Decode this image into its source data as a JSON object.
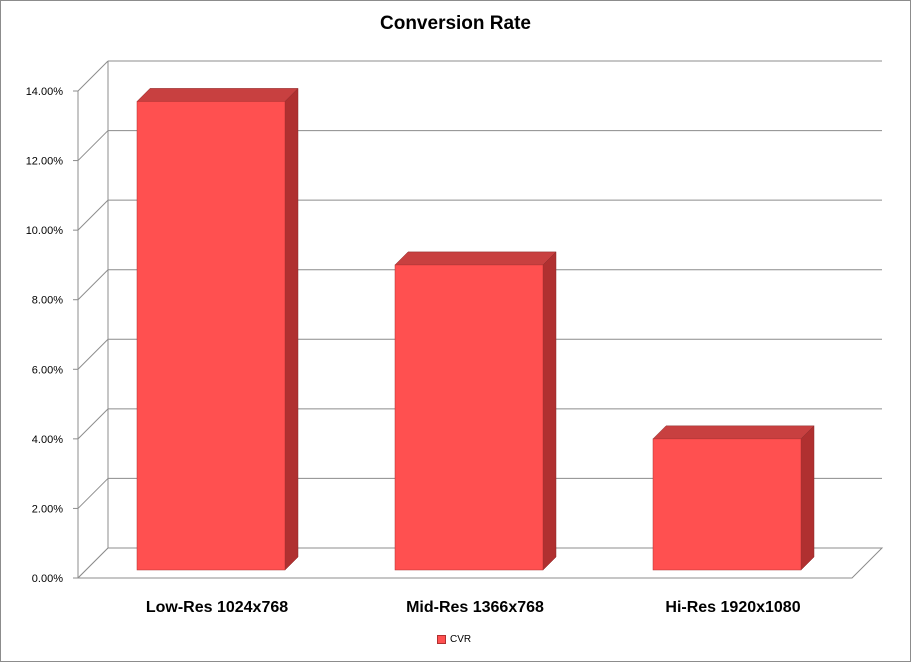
{
  "chart_data": {
    "type": "bar",
    "title": "Conversion Rate",
    "categories": [
      "Low-Res 1024x768",
      "Mid-Res 1366x768",
      "Hi-Res 1920x1080"
    ],
    "series": [
      {
        "name": "CVR",
        "values": [
          0.137,
          0.09,
          0.04
        ]
      }
    ],
    "y_ticks": [
      "0.00%",
      "2.00%",
      "4.00%",
      "6.00%",
      "8.00%",
      "10.00%",
      "12.00%",
      "14.00%"
    ],
    "ylim": [
      0,
      0.14
    ],
    "grid": true,
    "legend_position": "bottom",
    "colors": {
      "bar_front": "#ff5050",
      "bar_side": "#b03030",
      "bar_top": "#c84040",
      "grid": "#8c8c8c"
    }
  }
}
